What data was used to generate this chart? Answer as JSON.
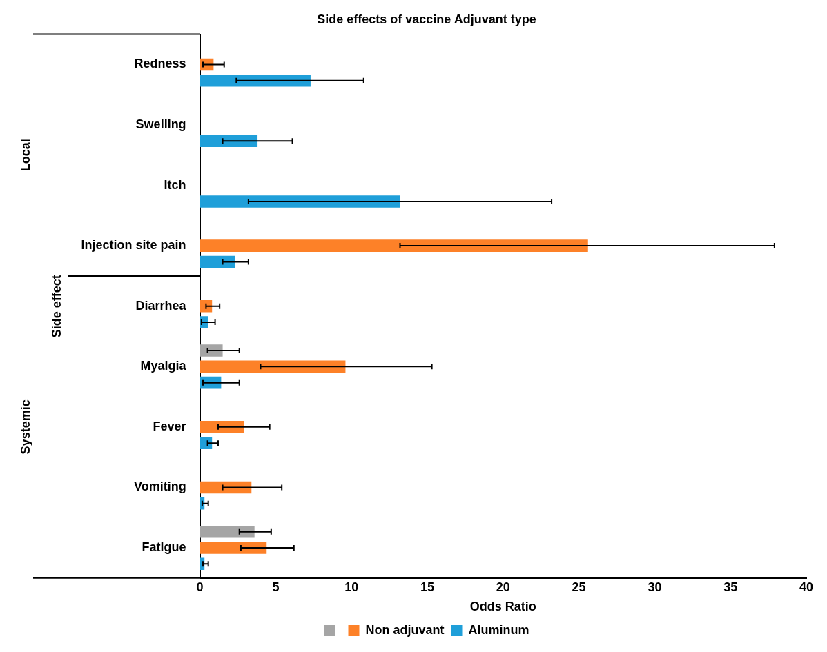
{
  "chart_data": {
    "type": "bar",
    "orientation": "horizontal",
    "title": "Side effects of vaccine Adjuvant type",
    "xlabel": "Odds Ratio",
    "ylabel": "Side effect",
    "annotations": [
      "Local",
      "Systemic"
    ],
    "categories": [
      "Redness",
      "Swelling",
      "Itch",
      "Injection site pain",
      "Diarrhea",
      "Myalgia",
      "Fever",
      "Vomiting",
      "Fatigue"
    ],
    "series": [
      {
        "color": "#a5a5a5",
        "values": [
          null,
          null,
          null,
          null,
          null,
          1.5,
          null,
          null,
          3.6
        ],
        "errors": [
          null,
          null,
          null,
          null,
          null,
          [
            0.5,
            2.6
          ],
          null,
          null,
          [
            2.6,
            4.7
          ]
        ]
      },
      {
        "name": "Non adjuvant",
        "color": "#fd8128",
        "values": [
          0.9,
          null,
          null,
          25.6,
          0.8,
          9.6,
          2.9,
          3.4,
          4.4
        ],
        "errors": [
          [
            0.2,
            1.6
          ],
          null,
          null,
          [
            13.2,
            37.9
          ],
          [
            0.4,
            1.3
          ],
          [
            4.0,
            15.3
          ],
          [
            1.2,
            4.6
          ],
          [
            1.5,
            5.4
          ],
          [
            2.7,
            6.2
          ]
        ]
      },
      {
        "name": "Aluminum",
        "color": "#1f9fd9",
        "values": [
          7.3,
          3.8,
          13.2,
          2.3,
          0.55,
          1.4,
          0.8,
          0.3,
          0.3
        ],
        "errors": [
          [
            2.4,
            10.8
          ],
          [
            1.5,
            6.1
          ],
          [
            3.2,
            23.2
          ],
          [
            1.5,
            3.2
          ],
          [
            0.1,
            1.0
          ],
          [
            0.2,
            2.6
          ],
          [
            0.5,
            1.2
          ],
          [
            0.15,
            0.55
          ],
          [
            0.2,
            0.55
          ]
        ]
      }
    ],
    "xlim": [
      0,
      40
    ],
    "xticks": [
      0,
      5,
      10,
      15,
      20,
      25,
      30,
      35,
      40
    ],
    "grid": false,
    "legend": "bottom"
  }
}
